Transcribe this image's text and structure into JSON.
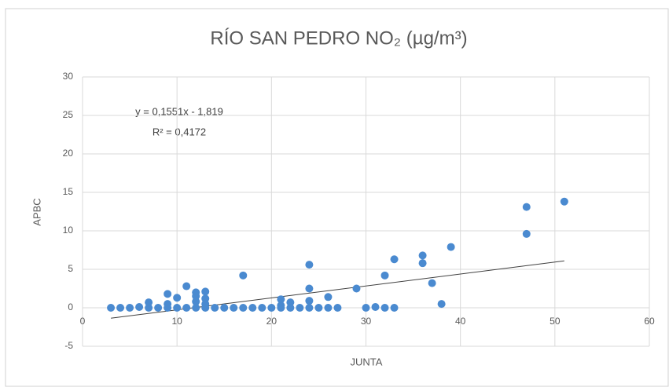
{
  "chart_data": {
    "type": "scatter",
    "title": "RÍO SAN PEDRO NO₂ (µg/m³)",
    "x_label": "JUNTA",
    "y_label": "APBC",
    "color": "#4a8ad0",
    "grid": true,
    "xlim": [
      0,
      60
    ],
    "xticks": [
      0,
      10,
      20,
      30,
      40,
      50,
      60
    ],
    "ylim": [
      -5,
      30
    ],
    "yticks": [
      -5,
      0,
      5,
      10,
      15,
      20,
      25,
      30
    ],
    "x": [
      3,
      4,
      5,
      6,
      7,
      7,
      8,
      9,
      9,
      9,
      10,
      10,
      11,
      11,
      12,
      12,
      12,
      12,
      13,
      13,
      13,
      13,
      14,
      15,
      16,
      17,
      17,
      18,
      19,
      20,
      21,
      21,
      21,
      22,
      22,
      23,
      24,
      24,
      24,
      24,
      25,
      26,
      26,
      27,
      29,
      30,
      31,
      32,
      32,
      33,
      33,
      36,
      36,
      37,
      38,
      39,
      47,
      47,
      51
    ],
    "values": [
      0,
      0,
      0,
      0.1,
      0.7,
      0,
      0,
      1.8,
      0.5,
      0,
      1.3,
      0,
      2.8,
      0,
      2,
      1.5,
      0.8,
      0,
      2.1,
      1.2,
      0.5,
      0,
      0,
      0,
      0,
      4.2,
      0,
      0,
      0,
      0,
      1.1,
      0.3,
      0,
      0.7,
      0,
      0,
      5.6,
      2.5,
      0.9,
      0,
      0,
      1.4,
      0,
      0,
      2.5,
      0,
      0.1,
      4.2,
      0,
      6.3,
      0,
      6.8,
      5.8,
      3.2,
      0.5,
      7.9,
      13.1,
      9.6,
      13.8
    ],
    "trendline": {
      "label": "y = 0,1551x - 1,819",
      "slope": 0.1551,
      "intercept": -1.819,
      "r2_label": "R² = 0,4172",
      "r2": 0.4172,
      "x": [
        3,
        51
      ],
      "color": "#404040"
    }
  }
}
